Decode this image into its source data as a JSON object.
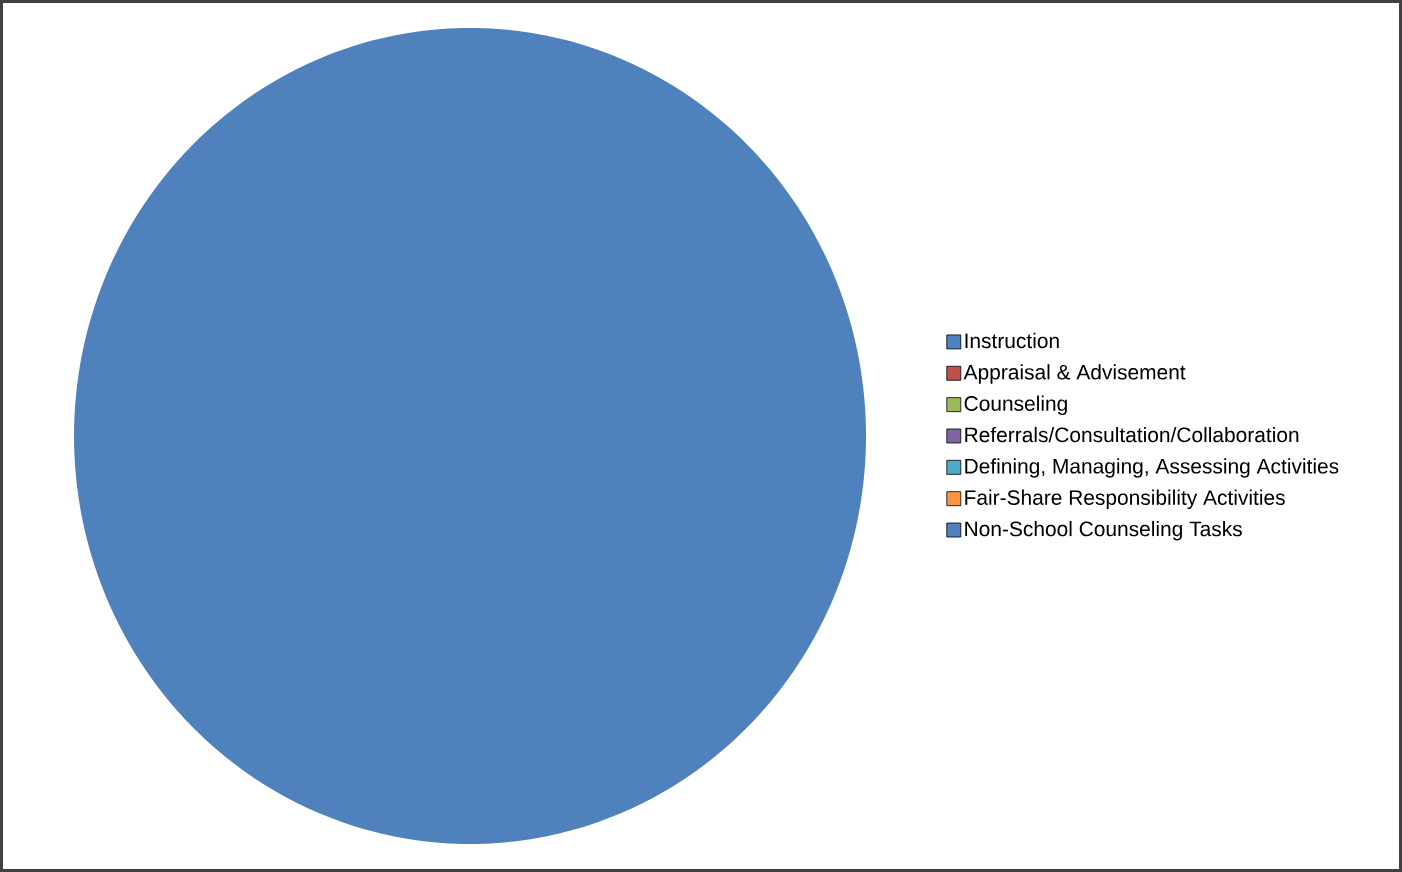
{
  "chart_data": {
    "type": "pie",
    "categories": [
      "Instruction",
      "Appraisal & Advisement",
      "Counseling",
      "Referrals/Consultation/Collaboration",
      "Defining, Managing, Assessing Activities",
      "Fair-Share Responsibility Activities",
      "Non-School Counseling Tasks"
    ],
    "values": [
      100,
      0,
      0,
      0,
      0,
      0,
      0
    ],
    "colors": [
      "#4f81bd",
      "#c0504d",
      "#9bbb59",
      "#8064a2",
      "#4bacc6",
      "#f79646",
      "#4f81bd"
    ],
    "legend": "right"
  }
}
